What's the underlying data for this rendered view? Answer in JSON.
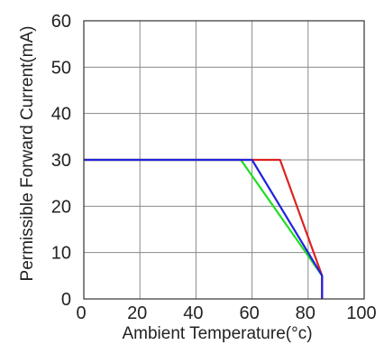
{
  "chart_data": {
    "type": "line",
    "title": "",
    "xlabel": "Ambient Temperature(°c)",
    "ylabel": "Permissible Forward Current(mA)",
    "xlim": [
      0,
      100
    ],
    "ylim": [
      0,
      60
    ],
    "x_ticks": [
      0,
      20,
      40,
      60,
      80,
      100
    ],
    "y_ticks": [
      0,
      10,
      20,
      30,
      40,
      50,
      60
    ],
    "x_tick_labels": [
      "0",
      "20",
      "40",
      "60",
      "80",
      "100"
    ],
    "y_tick_labels": [
      "0",
      "10",
      "20",
      "30",
      "40",
      "50",
      "60"
    ],
    "grid": true,
    "legend": "none",
    "series": [
      {
        "color": "#22dd22",
        "x": [
          0,
          56,
          85,
          85
        ],
        "y": [
          30,
          30,
          5,
          0
        ]
      },
      {
        "color": "#dd2222",
        "x": [
          0,
          70,
          85,
          85
        ],
        "y": [
          30,
          30,
          5,
          0
        ]
      },
      {
        "color": "#2222dd",
        "x": [
          0,
          60,
          85,
          85
        ],
        "y": [
          30,
          30,
          5,
          0
        ]
      }
    ]
  }
}
